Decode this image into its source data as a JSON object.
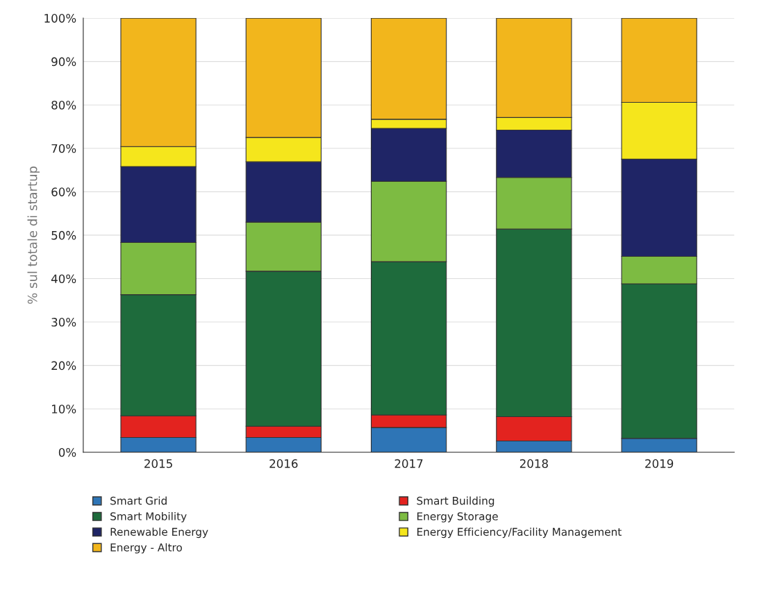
{
  "chart_data": {
    "type": "bar",
    "stacked": true,
    "ylabel": "% sul totale di startup",
    "categories": [
      "2015",
      "2016",
      "2017",
      "2018",
      "2019"
    ],
    "series": [
      {
        "name": "Smart Grid",
        "color": "#2e75b6",
        "values": [
          3.4,
          3.4,
          5.7,
          2.6,
          3.2
        ]
      },
      {
        "name": "Smart Building",
        "color": "#e3231f",
        "values": [
          5.0,
          2.6,
          2.9,
          5.6,
          0
        ]
      },
      {
        "name": "Smart Mobility",
        "color": "#1e6b3c",
        "values": [
          27.9,
          35.7,
          35.3,
          43.2,
          35.6
        ]
      },
      {
        "name": "Energy Storage",
        "color": "#7dbb42",
        "values": [
          12.0,
          11.3,
          18.5,
          11.9,
          6.3
        ]
      },
      {
        "name": "Renewable Energy",
        "color": "#1f2566",
        "values": [
          17.5,
          13.9,
          12.2,
          10.9,
          22.4
        ]
      },
      {
        "name": "Energy Efficiency/Facility Management",
        "color": "#f5e61c",
        "values": [
          4.6,
          5.6,
          2.1,
          2.9,
          13.1
        ]
      },
      {
        "name": "Energy - Altro",
        "color": "#f2b61c",
        "values": [
          29.6,
          27.5,
          23.3,
          22.9,
          19.4
        ]
      }
    ],
    "ylim": [
      0,
      100
    ],
    "yticks": [
      {
        "value": 0,
        "label": "0%"
      },
      {
        "value": 10,
        "label": "10%"
      },
      {
        "value": 20,
        "label": "20%"
      },
      {
        "value": 30,
        "label": "30%"
      },
      {
        "value": 40,
        "label": "40%"
      },
      {
        "value": 50,
        "label": "50%"
      },
      {
        "value": 60,
        "label": "60%"
      },
      {
        "value": 70,
        "label": "70%"
      },
      {
        "value": 80,
        "label": "80%"
      },
      {
        "value": 90,
        "label": "90%"
      },
      {
        "value": 100,
        "label": "100%"
      }
    ],
    "grid": "y",
    "legend": "bottom"
  }
}
